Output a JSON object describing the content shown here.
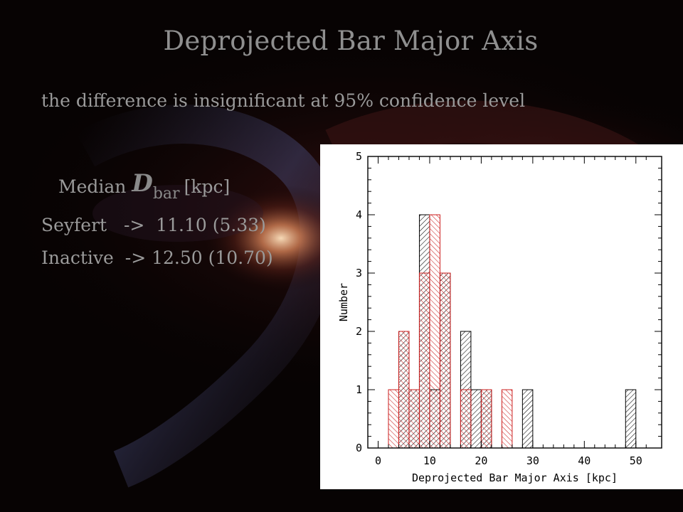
{
  "title": "Deprojected Bar Major Axis",
  "subtitle": "the difference is insignificant at 95% confidence level",
  "median": {
    "prefix": "Median",
    "symbol": "D",
    "subscript": "bar",
    "unit": "[kpc]"
  },
  "rows": [
    {
      "label": "Seyfert",
      "arrow": "->",
      "value": "11.10 (5.33)"
    },
    {
      "label": "Inactive",
      "arrow": "->",
      "value": "12.50 (10.70)"
    }
  ],
  "colors": {
    "seyfert": "#000000",
    "inactive": "#cc1f1f"
  },
  "chart_data": {
    "type": "bar",
    "subtype": "histogram",
    "xlabel": "Deprojected Bar Major Axis [kpc]",
    "ylabel": "Number",
    "xlim": [
      -2,
      55
    ],
    "ylim": [
      0,
      5
    ],
    "x_ticks": [
      0,
      10,
      20,
      30,
      40,
      50
    ],
    "y_ticks": [
      0,
      1,
      2,
      3,
      4,
      5
    ],
    "bin_width": 2,
    "series": [
      {
        "color": "#000000",
        "bins": [
          {
            "x0": 4,
            "count": 2
          },
          {
            "x0": 6,
            "count": 1
          },
          {
            "x0": 8,
            "count": 4
          },
          {
            "x0": 10,
            "count": 1
          },
          {
            "x0": 12,
            "count": 3
          },
          {
            "x0": 16,
            "count": 2
          },
          {
            "x0": 18,
            "count": 1
          },
          {
            "x0": 20,
            "count": 1
          },
          {
            "x0": 28,
            "count": 1
          },
          {
            "x0": 48,
            "count": 1
          }
        ]
      },
      {
        "color": "#cc1f1f",
        "bins": [
          {
            "x0": 2,
            "count": 1
          },
          {
            "x0": 4,
            "count": 2
          },
          {
            "x0": 6,
            "count": 1
          },
          {
            "x0": 8,
            "count": 3
          },
          {
            "x0": 10,
            "count": 4
          },
          {
            "x0": 12,
            "count": 3
          },
          {
            "x0": 16,
            "count": 1
          },
          {
            "x0": 20,
            "count": 1
          },
          {
            "x0": 24,
            "count": 1
          }
        ]
      }
    ]
  }
}
